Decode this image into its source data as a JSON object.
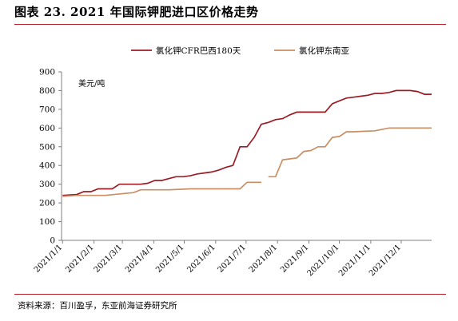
{
  "title": "图表 23. 2021 年国际钾肥进口区价格走势",
  "source": "资料来源：百川盈孚，东亚前海证券研究所",
  "chart_data": {
    "type": "line",
    "ylabel": "美元/吨",
    "ylim": [
      0,
      900
    ],
    "yticks": [
      0,
      100,
      200,
      300,
      400,
      500,
      600,
      700,
      800,
      900
    ],
    "x_range": [
      "2020-12-31",
      "2021-12-31"
    ],
    "x_ticks": [
      {
        "date": "2021-01-01",
        "label": "2021/1/1"
      },
      {
        "date": "2021-02-01",
        "label": "2021/2/1"
      },
      {
        "date": "2021-03-01",
        "label": "2021/3/1"
      },
      {
        "date": "2021-04-01",
        "label": "2021/4/1"
      },
      {
        "date": "2021-05-01",
        "label": "2021/5/1"
      },
      {
        "date": "2021-06-01",
        "label": "2021/6/1"
      },
      {
        "date": "2021-07-01",
        "label": "2021/7/1"
      },
      {
        "date": "2021-08-01",
        "label": "2021/8/1"
      },
      {
        "date": "2021-09-01",
        "label": "2021/9/1"
      },
      {
        "date": "2021-10-01",
        "label": "2021/10/1"
      },
      {
        "date": "2021-11-01",
        "label": "2021/11/1"
      },
      {
        "date": "2021-12-01",
        "label": "2021/12/1"
      }
    ],
    "grid": false,
    "legend_position": "top-right",
    "series": [
      {
        "name": "氯化钾CFR巴西180天",
        "color": "#9b1c24",
        "points": [
          [
            "2021-01-01",
            240
          ],
          [
            "2021-01-15",
            245
          ],
          [
            "2021-01-22",
            260
          ],
          [
            "2021-01-29",
            260
          ],
          [
            "2021-02-05",
            275
          ],
          [
            "2021-02-12",
            275
          ],
          [
            "2021-02-19",
            275
          ],
          [
            "2021-02-26",
            300
          ],
          [
            "2021-03-05",
            300
          ],
          [
            "2021-03-12",
            300
          ],
          [
            "2021-03-19",
            300
          ],
          [
            "2021-03-26",
            305
          ],
          [
            "2021-04-02",
            320
          ],
          [
            "2021-04-09",
            320
          ],
          [
            "2021-04-16",
            330
          ],
          [
            "2021-04-23",
            340
          ],
          [
            "2021-04-30",
            340
          ],
          [
            "2021-05-07",
            345
          ],
          [
            "2021-05-14",
            355
          ],
          [
            "2021-05-21",
            360
          ],
          [
            "2021-05-28",
            365
          ],
          [
            "2021-06-04",
            375
          ],
          [
            "2021-06-11",
            390
          ],
          [
            "2021-06-18",
            400
          ],
          [
            "2021-06-25",
            500
          ],
          [
            "2021-07-02",
            500
          ],
          [
            "2021-07-09",
            550
          ],
          [
            "2021-07-16",
            620
          ],
          [
            "2021-07-23",
            630
          ],
          [
            "2021-07-30",
            645
          ],
          [
            "2021-08-06",
            650
          ],
          [
            "2021-08-13",
            670
          ],
          [
            "2021-08-20",
            685
          ],
          [
            "2021-08-27",
            685
          ],
          [
            "2021-09-03",
            685
          ],
          [
            "2021-09-10",
            685
          ],
          [
            "2021-09-17",
            685
          ],
          [
            "2021-09-24",
            730
          ],
          [
            "2021-10-01",
            745
          ],
          [
            "2021-10-08",
            760
          ],
          [
            "2021-10-15",
            765
          ],
          [
            "2021-10-22",
            770
          ],
          [
            "2021-10-29",
            775
          ],
          [
            "2021-11-05",
            785
          ],
          [
            "2021-11-12",
            785
          ],
          [
            "2021-11-19",
            790
          ],
          [
            "2021-11-26",
            800
          ],
          [
            "2021-12-03",
            800
          ],
          [
            "2021-12-10",
            800
          ],
          [
            "2021-12-17",
            795
          ],
          [
            "2021-12-24",
            780
          ],
          [
            "2021-12-31",
            780
          ]
        ]
      },
      {
        "name": "氯化钾东南亚",
        "color": "#c98e63",
        "points": [
          [
            "2021-01-01",
            235
          ],
          [
            "2021-01-15",
            240
          ],
          [
            "2021-02-12",
            240
          ],
          [
            "2021-03-12",
            255
          ],
          [
            "2021-03-19",
            270
          ],
          [
            "2021-04-16",
            270
          ],
          [
            "2021-05-07",
            275
          ],
          [
            "2021-05-28",
            275
          ],
          [
            "2021-06-25",
            275
          ],
          [
            "2021-07-02",
            310
          ],
          [
            "2021-07-16",
            310
          ],
          null,
          [
            "2021-07-23",
            340
          ],
          [
            "2021-07-30",
            340
          ],
          [
            "2021-08-06",
            430
          ],
          [
            "2021-08-13",
            435
          ],
          [
            "2021-08-20",
            440
          ],
          [
            "2021-08-27",
            475
          ],
          [
            "2021-09-03",
            480
          ],
          [
            "2021-09-10",
            500
          ],
          [
            "2021-09-17",
            500
          ],
          [
            "2021-09-24",
            550
          ],
          [
            "2021-10-01",
            555
          ],
          [
            "2021-10-08",
            580
          ],
          [
            "2021-10-15",
            580
          ],
          [
            "2021-11-05",
            585
          ],
          [
            "2021-11-19",
            600
          ],
          [
            "2021-12-03",
            600
          ],
          [
            "2021-12-31",
            600
          ]
        ]
      }
    ]
  }
}
